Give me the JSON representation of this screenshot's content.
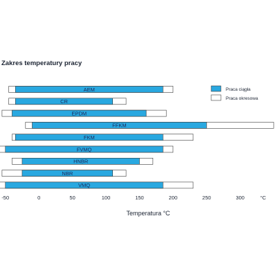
{
  "colors": {
    "continuous": "#29a8e0",
    "periodic": "#ffffff",
    "border": "#3a3a3a",
    "text": "#1c2433"
  },
  "chart_data": {
    "type": "bar",
    "orientation": "horizontal",
    "title": "Zakres temperatury pracy",
    "xlabel": "Temperatura °C",
    "unit_label": "°C",
    "xlim": [
      -58,
      355
    ],
    "xticks": [
      -50,
      0,
      50,
      100,
      150,
      200,
      250,
      300
    ],
    "categories": [
      "AEM",
      "CR",
      "EPDM",
      "FFKM",
      "FKM",
      "FVMQ",
      "HNBR",
      "NBR",
      "VMQ"
    ],
    "series": [
      {
        "name": "Praca ciągła",
        "ranges": [
          [
            -35,
            185
          ],
          [
            -35,
            110
          ],
          [
            -40,
            160
          ],
          [
            -10,
            250
          ],
          [
            -35,
            185
          ],
          [
            -50,
            185
          ],
          [
            -25,
            150
          ],
          [
            -25,
            110
          ],
          [
            -50,
            185
          ]
        ]
      },
      {
        "name": "Praca okresowa",
        "ranges": [
          [
            -45,
            200
          ],
          [
            -45,
            130
          ],
          [
            -55,
            190
          ],
          [
            -20,
            350
          ],
          [
            -40,
            230
          ],
          [
            -60,
            200
          ],
          [
            -40,
            170
          ],
          [
            -55,
            130
          ],
          [
            -90,
            230
          ]
        ]
      }
    ],
    "legend_position": "right",
    "grid": false
  }
}
